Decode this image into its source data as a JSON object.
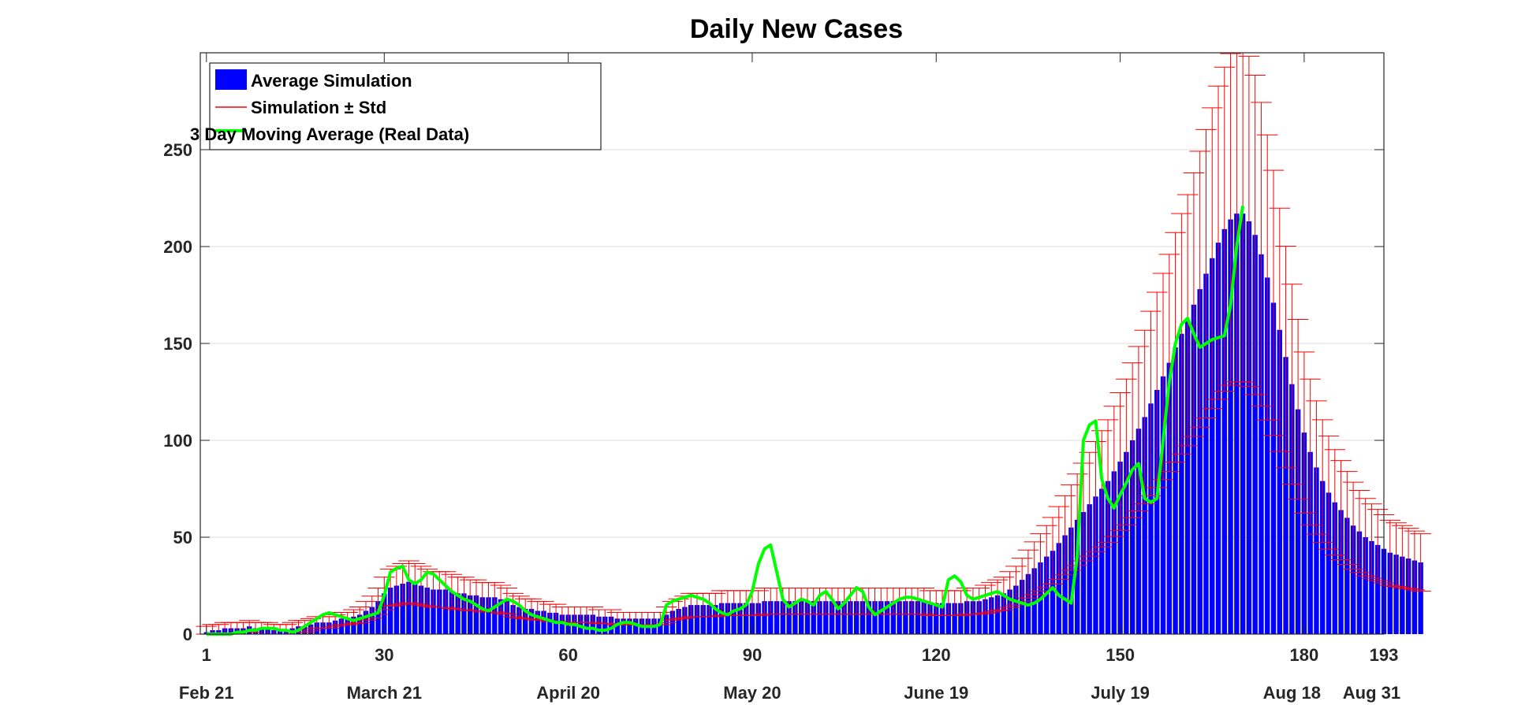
{
  "chart_data": {
    "type": "bar",
    "title": "Daily New Cases",
    "xlabel": "",
    "ylabel": "",
    "xlim": [
      0,
      193
    ],
    "ylim": [
      0,
      300
    ],
    "grid": true,
    "legend_position": "top-left",
    "x_ticks": [
      1,
      30,
      60,
      90,
      120,
      150,
      180,
      193
    ],
    "y_ticks": [
      0,
      50,
      100,
      150,
      200,
      250
    ],
    "date_labels": [
      {
        "x": 1,
        "label": "Feb 21"
      },
      {
        "x": 30,
        "label": "March 21"
      },
      {
        "x": 60,
        "label": "April 20"
      },
      {
        "x": 90,
        "label": "May 20"
      },
      {
        "x": 120,
        "label": "June 19"
      },
      {
        "x": 150,
        "label": "July 19"
      },
      {
        "x": 178,
        "label": "Aug 18"
      },
      {
        "x": 191,
        "label": "Aug 31"
      }
    ],
    "legend": [
      {
        "name": "Average Simulation",
        "style": "bar",
        "color": "#0000ff"
      },
      {
        "name": "Simulation ± Std",
        "style": "errorbar",
        "color": "#ff0000"
      },
      {
        "name": "3 Day Moving Average (Real Data)",
        "style": "line",
        "color": "#00ff00"
      }
    ],
    "series": [
      {
        "name": "Average Simulation",
        "type": "bar",
        "color": "#0000ff",
        "start_day": 1,
        "values": [
          1,
          2,
          2,
          3,
          3,
          3,
          3,
          4,
          3,
          3,
          3,
          2,
          2,
          2,
          3,
          4,
          4,
          5,
          6,
          6,
          6,
          7,
          8,
          8,
          9,
          10,
          12,
          14,
          17,
          21,
          24,
          25,
          26,
          27,
          26,
          25,
          24,
          23,
          23,
          23,
          22,
          21,
          21,
          20,
          20,
          19,
          19,
          19,
          18,
          17,
          15,
          14,
          13,
          13,
          12,
          12,
          11,
          11,
          10,
          10,
          10,
          10,
          10,
          10,
          9,
          9,
          9,
          8,
          8,
          8,
          8,
          8,
          8,
          8,
          8,
          10,
          12,
          13,
          14,
          15,
          15,
          15,
          15,
          15,
          16,
          16,
          16,
          16,
          16,
          16,
          16,
          17,
          17,
          17,
          17,
          17,
          17,
          17,
          17,
          17,
          17,
          17,
          17,
          17,
          17,
          17,
          17,
          17,
          17,
          17,
          17,
          17,
          17,
          17,
          17,
          17,
          17,
          17,
          16,
          16,
          16,
          16,
          16,
          16,
          17,
          17,
          17,
          18,
          19,
          20,
          21,
          23,
          25,
          28,
          31,
          34,
          37,
          40,
          43,
          47,
          51,
          55,
          59,
          63,
          67,
          71,
          75,
          79,
          84,
          89,
          94,
          100,
          106,
          112,
          119,
          126,
          133,
          140,
          148,
          155,
          162,
          170,
          178,
          186,
          194,
          202,
          209,
          214,
          217,
          217,
          213,
          206,
          196,
          184,
          171,
          157,
          143,
          129,
          116,
          104,
          94,
          86,
          79,
          73,
          68,
          64,
          60,
          56,
          53,
          50,
          48,
          46,
          44,
          42,
          41,
          40,
          39,
          38,
          37
        ]
      },
      {
        "name": "Simulation ± Std",
        "type": "errorbar",
        "color": "#ff0000",
        "std_fraction_of_value": 0.4
      },
      {
        "name": "3 Day Moving Average (Real Data)",
        "type": "line",
        "color": "#00ff00",
        "start_day": 1,
        "values": [
          0,
          0,
          0,
          0,
          0,
          1,
          1,
          2,
          2,
          3,
          3,
          3,
          2,
          2,
          1,
          2,
          4,
          6,
          8,
          10,
          11,
          10,
          9,
          8,
          7,
          8,
          9,
          10,
          11,
          20,
          32,
          34,
          35,
          28,
          26,
          28,
          32,
          31,
          28,
          25,
          22,
          20,
          18,
          17,
          15,
          13,
          12,
          14,
          16,
          18,
          17,
          15,
          12,
          10,
          9,
          8,
          7,
          6,
          6,
          5,
          5,
          4,
          3,
          3,
          2,
          2,
          3,
          5,
          6,
          6,
          5,
          4,
          4,
          4,
          5,
          15,
          17,
          18,
          19,
          20,
          19,
          18,
          16,
          13,
          11,
          10,
          12,
          13,
          15,
          22,
          36,
          44,
          46,
          32,
          18,
          14,
          16,
          18,
          17,
          15,
          20,
          22,
          18,
          13,
          16,
          20,
          24,
          22,
          14,
          10,
          12,
          14,
          16,
          18,
          19,
          19,
          18,
          17,
          16,
          15,
          14,
          28,
          30,
          27,
          20,
          18,
          19,
          20,
          21,
          22,
          20,
          18,
          17,
          16,
          15,
          16,
          18,
          21,
          24,
          20,
          18,
          16,
          40,
          100,
          108,
          110,
          80,
          70,
          65,
          72,
          78,
          85,
          88,
          70,
          68,
          70,
          100,
          130,
          150,
          160,
          163,
          155,
          148,
          150,
          152,
          153,
          154,
          170,
          200,
          221
        ]
      }
    ]
  }
}
